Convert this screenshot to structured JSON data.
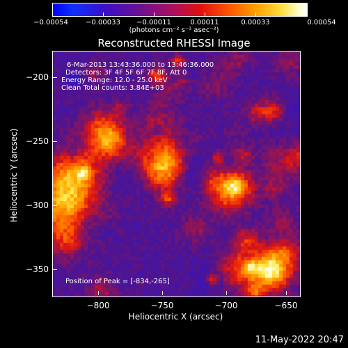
{
  "colorbar": {
    "ticks": [
      "−0.00054",
      "−0.00033",
      "−0.00011",
      "0.00011",
      "0.00033",
      "0.00054"
    ],
    "units": "(photons cm⁻² s⁻¹ asec⁻²)"
  },
  "title": "Reconstructed RHESSI Image",
  "overlay": {
    "time": "6-Mar-2013 13:43:36.000 to 13:46:36.000",
    "detectors": "Detectors: 3F 4F 5F 6F 7F 8F, Att 0",
    "energy": "Energy Range: 12.0 - 25.0 keV",
    "clean": "Clean     Total counts: 3.84E+03",
    "peak": "Position of Peak = [-834,-265]"
  },
  "axes": {
    "xlabel": "Heliocentric X (arcsec)",
    "ylabel": "Heliocentric Y (arcsec)",
    "xticks": [
      "−800",
      "−750",
      "−700",
      "−650"
    ],
    "yticks": [
      "−200",
      "−250",
      "−300",
      "−350"
    ]
  },
  "timestamp": "11-May-2022 20:47"
}
